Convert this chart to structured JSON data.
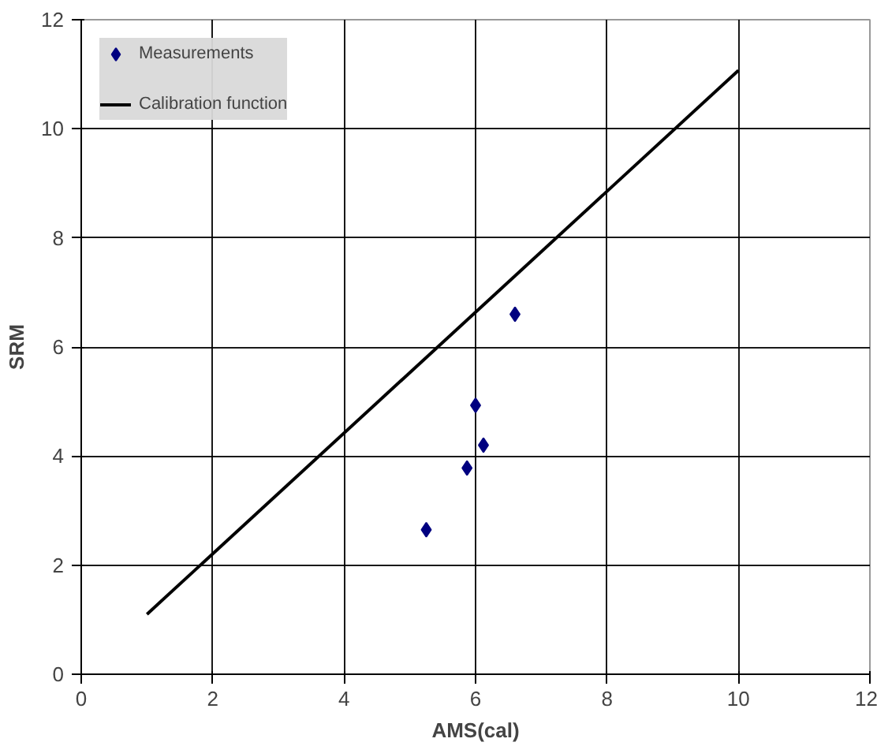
{
  "chart_data": {
    "type": "scatter",
    "xlabel": "AMS(cal)",
    "ylabel": "SRM",
    "xlim": [
      0,
      12
    ],
    "ylim": [
      0,
      12
    ],
    "xticks": [
      0,
      2,
      4,
      6,
      8,
      10,
      12
    ],
    "yticks": [
      0,
      2,
      4,
      6,
      8,
      10,
      12
    ],
    "grid": true,
    "legend": "top left",
    "series": [
      {
        "name": "Measurements",
        "color": "#000080",
        "marker": "diamond",
        "x": [
          5.25,
          5.87,
          6.0,
          6.12,
          6.6
        ],
        "values": [
          2.65,
          3.78,
          4.93,
          4.2,
          6.6
        ]
      },
      {
        "name": "Calibration function",
        "type": "line",
        "marker": "none",
        "color": "#000000",
        "line_style": "solid",
        "x": [
          1,
          10
        ],
        "values": [
          1.1,
          11.07
        ]
      }
    ]
  }
}
